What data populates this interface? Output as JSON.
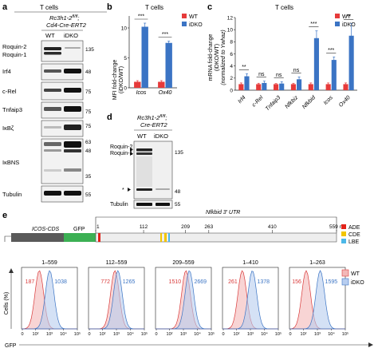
{
  "panel_a": {
    "letter": "a",
    "cell_label": "T cells",
    "genotype_l1": "Rc3h1-2",
    "genotype_sup": "fl/fl",
    "genotype_l2": "Cd4-Cre-ERT2",
    "lanes": [
      "WT",
      "iDKO"
    ],
    "rows": [
      {
        "label1": "Roquin-2",
        "label2": "Roquin-1",
        "markers": [
          "135"
        ]
      },
      {
        "label1": "Irf4",
        "markers": [
          "48"
        ]
      },
      {
        "label1": "c-Rel",
        "markers": [
          "75"
        ]
      },
      {
        "label1": "Tnfaip3",
        "markers": [
          "75"
        ]
      },
      {
        "label1": "IκBζ",
        "markers": [
          "75"
        ]
      },
      {
        "label1": "IκBNS",
        "markers": [
          "63",
          "48",
          "35"
        ]
      },
      {
        "label1": "Tubulin",
        "markers": [
          "55"
        ]
      }
    ]
  },
  "panel_b": {
    "letter": "b",
    "title": "T cells",
    "ylabel_l1": "MFI fold-change",
    "ylabel_l2": "(iDKO/WT)",
    "legend": [
      "WT",
      "iDKO"
    ],
    "colors": {
      "WT": "#e63a3a",
      "iDKO": "#3b74c4"
    }
  },
  "panel_c": {
    "letter": "c",
    "title": "T cells",
    "ylabel_l1": "mRNA fold-change",
    "ylabel_l2": "(iDKO/WT)",
    "ylabel_l3": "(normalized to Ywhaz)",
    "legend": [
      "WT",
      "iDKO"
    ]
  },
  "panel_d": {
    "letter": "d",
    "genotype_l1": "Rc3h1-2",
    "genotype_sup": "fl/fl",
    "genotype_l2": "Cre-ERT2",
    "lanes": [
      "WT",
      "iDKO"
    ],
    "label_roquin2": "Roquin-2",
    "label_roquin1": "Roquin-1",
    "star": "*",
    "marker_135": "135",
    "marker_48": "48",
    "tubulin": "Tubulin",
    "marker_55": "55"
  },
  "panel_e": {
    "letter": "e",
    "cds_label": "ICOS-CDS",
    "gfp_label": "GFP",
    "utr_label": "Nfkbid 3′ UTR",
    "positions": [
      "1",
      "112",
      "209",
      "263",
      "410",
      "559 nt"
    ],
    "legend": [
      {
        "label": "ADE",
        "color": "#e2231a"
      },
      {
        "label": "CDE",
        "color": "#f2c500"
      },
      {
        "label": "LBE",
        "color": "#4cb8e8"
      }
    ],
    "histograms": [
      {
        "title": "1–559",
        "wt": "187",
        "idko": "1038"
      },
      {
        "title": "112–559",
        "wt": "772",
        "idko": "1265"
      },
      {
        "title": "209–559",
        "wt": "1510",
        "idko": "2669"
      },
      {
        "title": "1–410",
        "wt": "261",
        "idko": "1378"
      },
      {
        "title": "1–263",
        "wt": "156",
        "idko": "1595"
      }
    ],
    "hist_legend": [
      "WT",
      "iDKO"
    ],
    "yaxis_label": "Cells (%)",
    "xaxis_label": "GFP",
    "ticks": [
      "0",
      "10²",
      "10³",
      "10⁴",
      "10⁵"
    ]
  },
  "chart_data": [
    {
      "type": "bar",
      "title": "T cells",
      "ylabel": "MFI fold-change (iDKO/WT)",
      "categories": [
        "Icos",
        "Ox40"
      ],
      "series": [
        {
          "name": "WT",
          "values": [
            1,
            1
          ]
        },
        {
          "name": "iDKO",
          "values": [
            10.2,
            7.5
          ]
        }
      ],
      "errors": {
        "WT": [
          0.2,
          0.2
        ],
        "iDKO": [
          0.6,
          0.3
        ]
      },
      "ylim": [
        0,
        12
      ],
      "yticks": [
        "0",
        "5",
        "10"
      ],
      "significance": [
        "***",
        "***"
      ],
      "legend_position": "top-right"
    },
    {
      "type": "bar",
      "title": "T cells",
      "ylabel": "mRNA fold-change (iDKO/WT) (normalized to Ywhaz)",
      "categories": [
        "Irf4",
        "c-Rel",
        "Tnfaip3",
        "Nfkbiz",
        "Nfkbid",
        "Icos",
        "Ox40"
      ],
      "series": [
        {
          "name": "WT",
          "values": [
            1,
            1,
            1,
            1,
            1,
            1,
            1
          ]
        },
        {
          "name": "iDKO",
          "values": [
            2.3,
            1.2,
            1.1,
            1.8,
            8.6,
            5.0,
            9.0
          ]
        }
      ],
      "errors": {
        "WT": [
          0.2,
          0.15,
          0.1,
          0.15,
          0.2,
          0.2,
          0.2
        ],
        "iDKO": [
          0.4,
          0.3,
          0.3,
          0.4,
          1.2,
          0.5,
          2.0
        ]
      },
      "ylim": [
        0,
        12
      ],
      "yticks": [
        "0",
        "2",
        "4",
        "6",
        "8",
        "10",
        "12"
      ],
      "significance": [
        "**",
        "ns",
        "ns",
        "ns",
        "***",
        "***",
        "**"
      ],
      "legend_position": "top-right"
    }
  ]
}
